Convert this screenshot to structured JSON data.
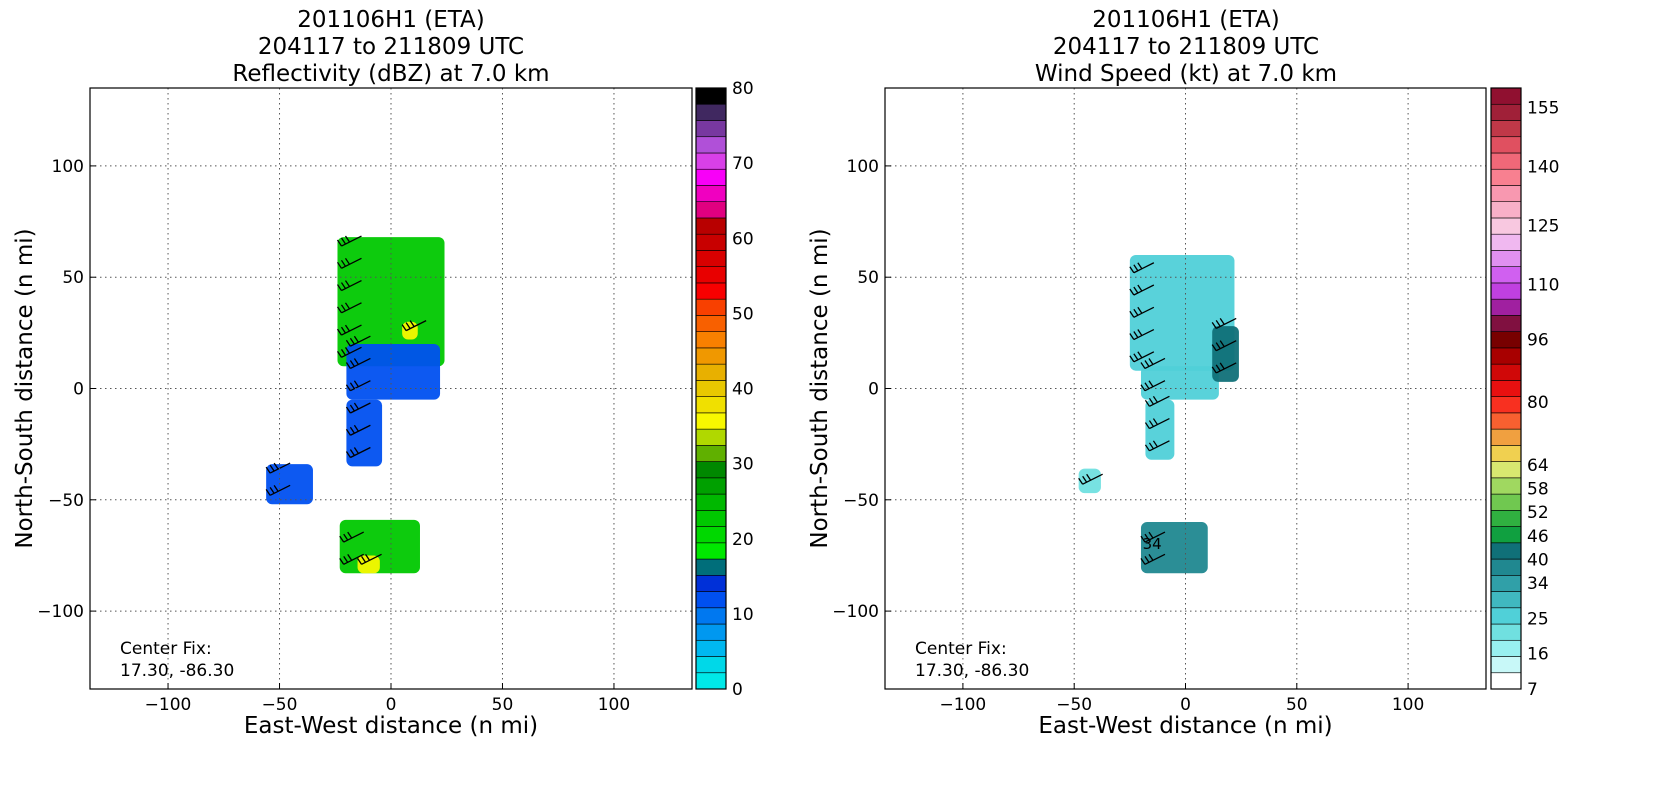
{
  "chart_data": [
    {
      "type": "heatmap",
      "title_lines": [
        "201106H1 (ETA)",
        "204117 to 211809 UTC",
        "Reflectivity (dBZ) at 7.0 km"
      ],
      "xlabel": "East-West distance (n mi)",
      "ylabel": "North-South distance (n mi)",
      "xlim": [
        -135,
        135
      ],
      "ylim": [
        -135,
        135
      ],
      "xticks": [
        -100,
        -50,
        0,
        50,
        100
      ],
      "yticks": [
        -100,
        -50,
        0,
        50,
        100
      ],
      "grid": true,
      "center_fix_label": "Center Fix:",
      "center_fix_value": "17.30, -86.30",
      "colorbar": {
        "min": 0,
        "max": 80,
        "ticks": [
          "0",
          "10",
          "20",
          "30",
          "40",
          "50",
          "60",
          "70",
          "80"
        ],
        "colors": [
          "#00e8e8",
          "#00d8e8",
          "#00b8f0",
          "#0098f0",
          "#0078f0",
          "#0050f0",
          "#0030d8",
          "#006e7a",
          "#00e800",
          "#00d800",
          "#00c800",
          "#00b800",
          "#00a000",
          "#008800",
          "#60b000",
          "#b0d800",
          "#f8f800",
          "#f0e000",
          "#e8c800",
          "#e8b000",
          "#f09800",
          "#f88000",
          "#f86000",
          "#f84000",
          "#f80000",
          "#e80000",
          "#d80000",
          "#c80000",
          "#b80000",
          "#e00080",
          "#f000c0",
          "#f800f8",
          "#d840e8",
          "#b050d8",
          "#7838a0",
          "#402860",
          "#000000"
        ]
      },
      "echoes": [
        {
          "x": [
            -24,
            24
          ],
          "y": [
            10,
            68
          ],
          "value": 22
        },
        {
          "x": [
            -20,
            22
          ],
          "y": [
            -5,
            20
          ],
          "value": 12
        },
        {
          "x": [
            -20,
            -4
          ],
          "y": [
            -35,
            -5
          ],
          "value": 12
        },
        {
          "x": [
            -56,
            -35
          ],
          "y": [
            -52,
            -34
          ],
          "value": 12
        },
        {
          "x": [
            -23,
            13
          ],
          "y": [
            -83,
            -59
          ],
          "value": 22
        },
        {
          "x": [
            -15,
            -5
          ],
          "y": [
            -83,
            -75
          ],
          "value": 36
        },
        {
          "x": [
            5,
            12
          ],
          "y": [
            22,
            30
          ],
          "value": 36
        }
      ]
    },
    {
      "type": "heatmap",
      "title_lines": [
        "201106H1 (ETA)",
        "204117 to 211809 UTC",
        "Wind Speed (kt) at 7.0 km"
      ],
      "xlabel": "East-West distance (n mi)",
      "ylabel": "North-South distance (n mi)",
      "xlim": [
        -135,
        135
      ],
      "ylim": [
        -135,
        135
      ],
      "xticks": [
        -100,
        -50,
        0,
        50,
        100
      ],
      "yticks": [
        -100,
        -50,
        0,
        50,
        100
      ],
      "grid": true,
      "center_fix_label": "Center Fix:",
      "center_fix_value": "17.30, -86.30",
      "contour_label": "34",
      "colorbar": {
        "min": 7,
        "max": 160,
        "ticks": [
          "7",
          "16",
          "25",
          "34",
          "40",
          "46",
          "52",
          "58",
          "64",
          "80",
          "96",
          "110",
          "125",
          "140",
          "155"
        ],
        "tick_values": [
          7,
          16,
          25,
          34,
          40,
          46,
          52,
          58,
          64,
          80,
          96,
          110,
          125,
          140,
          155
        ],
        "colors": [
          "#ffffff",
          "#c8f8f8",
          "#98f0f0",
          "#70e0e0",
          "#50d0d8",
          "#40b8c0",
          "#30a0a8",
          "#208890",
          "#107078",
          "#10a040",
          "#30b040",
          "#70c850",
          "#a0d860",
          "#d8e870",
          "#f0d050",
          "#f0a040",
          "#f86030",
          "#f83020",
          "#e81010",
          "#d00808",
          "#a80000",
          "#780000",
          "#801040",
          "#a020a0",
          "#c040e0",
          "#d060f0",
          "#e090f0",
          "#f0b8f0",
          "#f8c8e0",
          "#f8b0c8",
          "#f898b0",
          "#f88090",
          "#f06878",
          "#e05060",
          "#c03848",
          "#a02038",
          "#901030"
        ]
      },
      "echoes": [
        {
          "x": [
            -25,
            22
          ],
          "y": [
            8,
            60
          ],
          "value": 26
        },
        {
          "x": [
            -20,
            15
          ],
          "y": [
            -5,
            10
          ],
          "value": 24
        },
        {
          "x": [
            -18,
            -5
          ],
          "y": [
            -32,
            -5
          ],
          "value": 24
        },
        {
          "x": [
            -48,
            -38
          ],
          "y": [
            -47,
            -36
          ],
          "value": 22
        },
        {
          "x": [
            -20,
            10
          ],
          "y": [
            -83,
            -60
          ],
          "value": 36
        },
        {
          "x": [
            12,
            24
          ],
          "y": [
            3,
            28
          ],
          "value": 42
        }
      ]
    }
  ]
}
